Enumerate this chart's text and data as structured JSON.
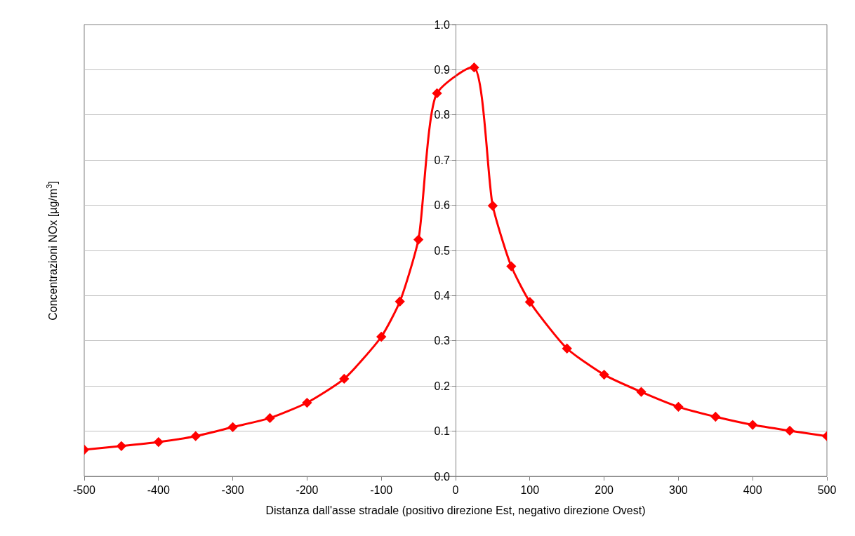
{
  "chart_data": {
    "type": "line",
    "xlabel": "Distanza dall'asse stradale (positivo direzione Est, negativo direzione Ovest)",
    "ylabel": "Concentrazioni NOx [µg/m$^{3}$]",
    "x": [
      -500,
      -450,
      -400,
      -350,
      -300,
      -250,
      -200,
      -150,
      -100,
      -75,
      -50,
      -25,
      25,
      50,
      75,
      100,
      150,
      200,
      250,
      300,
      350,
      400,
      450,
      500
    ],
    "series": [
      {
        "color": "#ff0000",
        "values": [
          0.059,
          0.067,
          0.076,
          0.089,
          0.109,
          0.129,
          0.163,
          0.216,
          0.309,
          0.387,
          0.524,
          0.848,
          0.905,
          0.599,
          0.465,
          0.386,
          0.283,
          0.225,
          0.187,
          0.154,
          0.132,
          0.114,
          0.101,
          0.089
        ]
      }
    ],
    "xlim": [
      -500,
      500
    ],
    "xticks": [
      -500,
      -400,
      -300,
      -200,
      -100,
      0,
      100,
      200,
      300,
      400,
      500
    ],
    "ylim": [
      0,
      1
    ],
    "yticks": [
      {
        "value": 0,
        "label": "0.0"
      },
      0.1,
      0.2,
      0.3,
      0.4,
      0.5,
      0.6,
      0.7,
      0.8,
      0.9,
      {
        "value": 1,
        "label": "1.0"
      }
    ],
    "grid": "y",
    "marker": "diamond",
    "line_style": "solid",
    "legend": false
  }
}
